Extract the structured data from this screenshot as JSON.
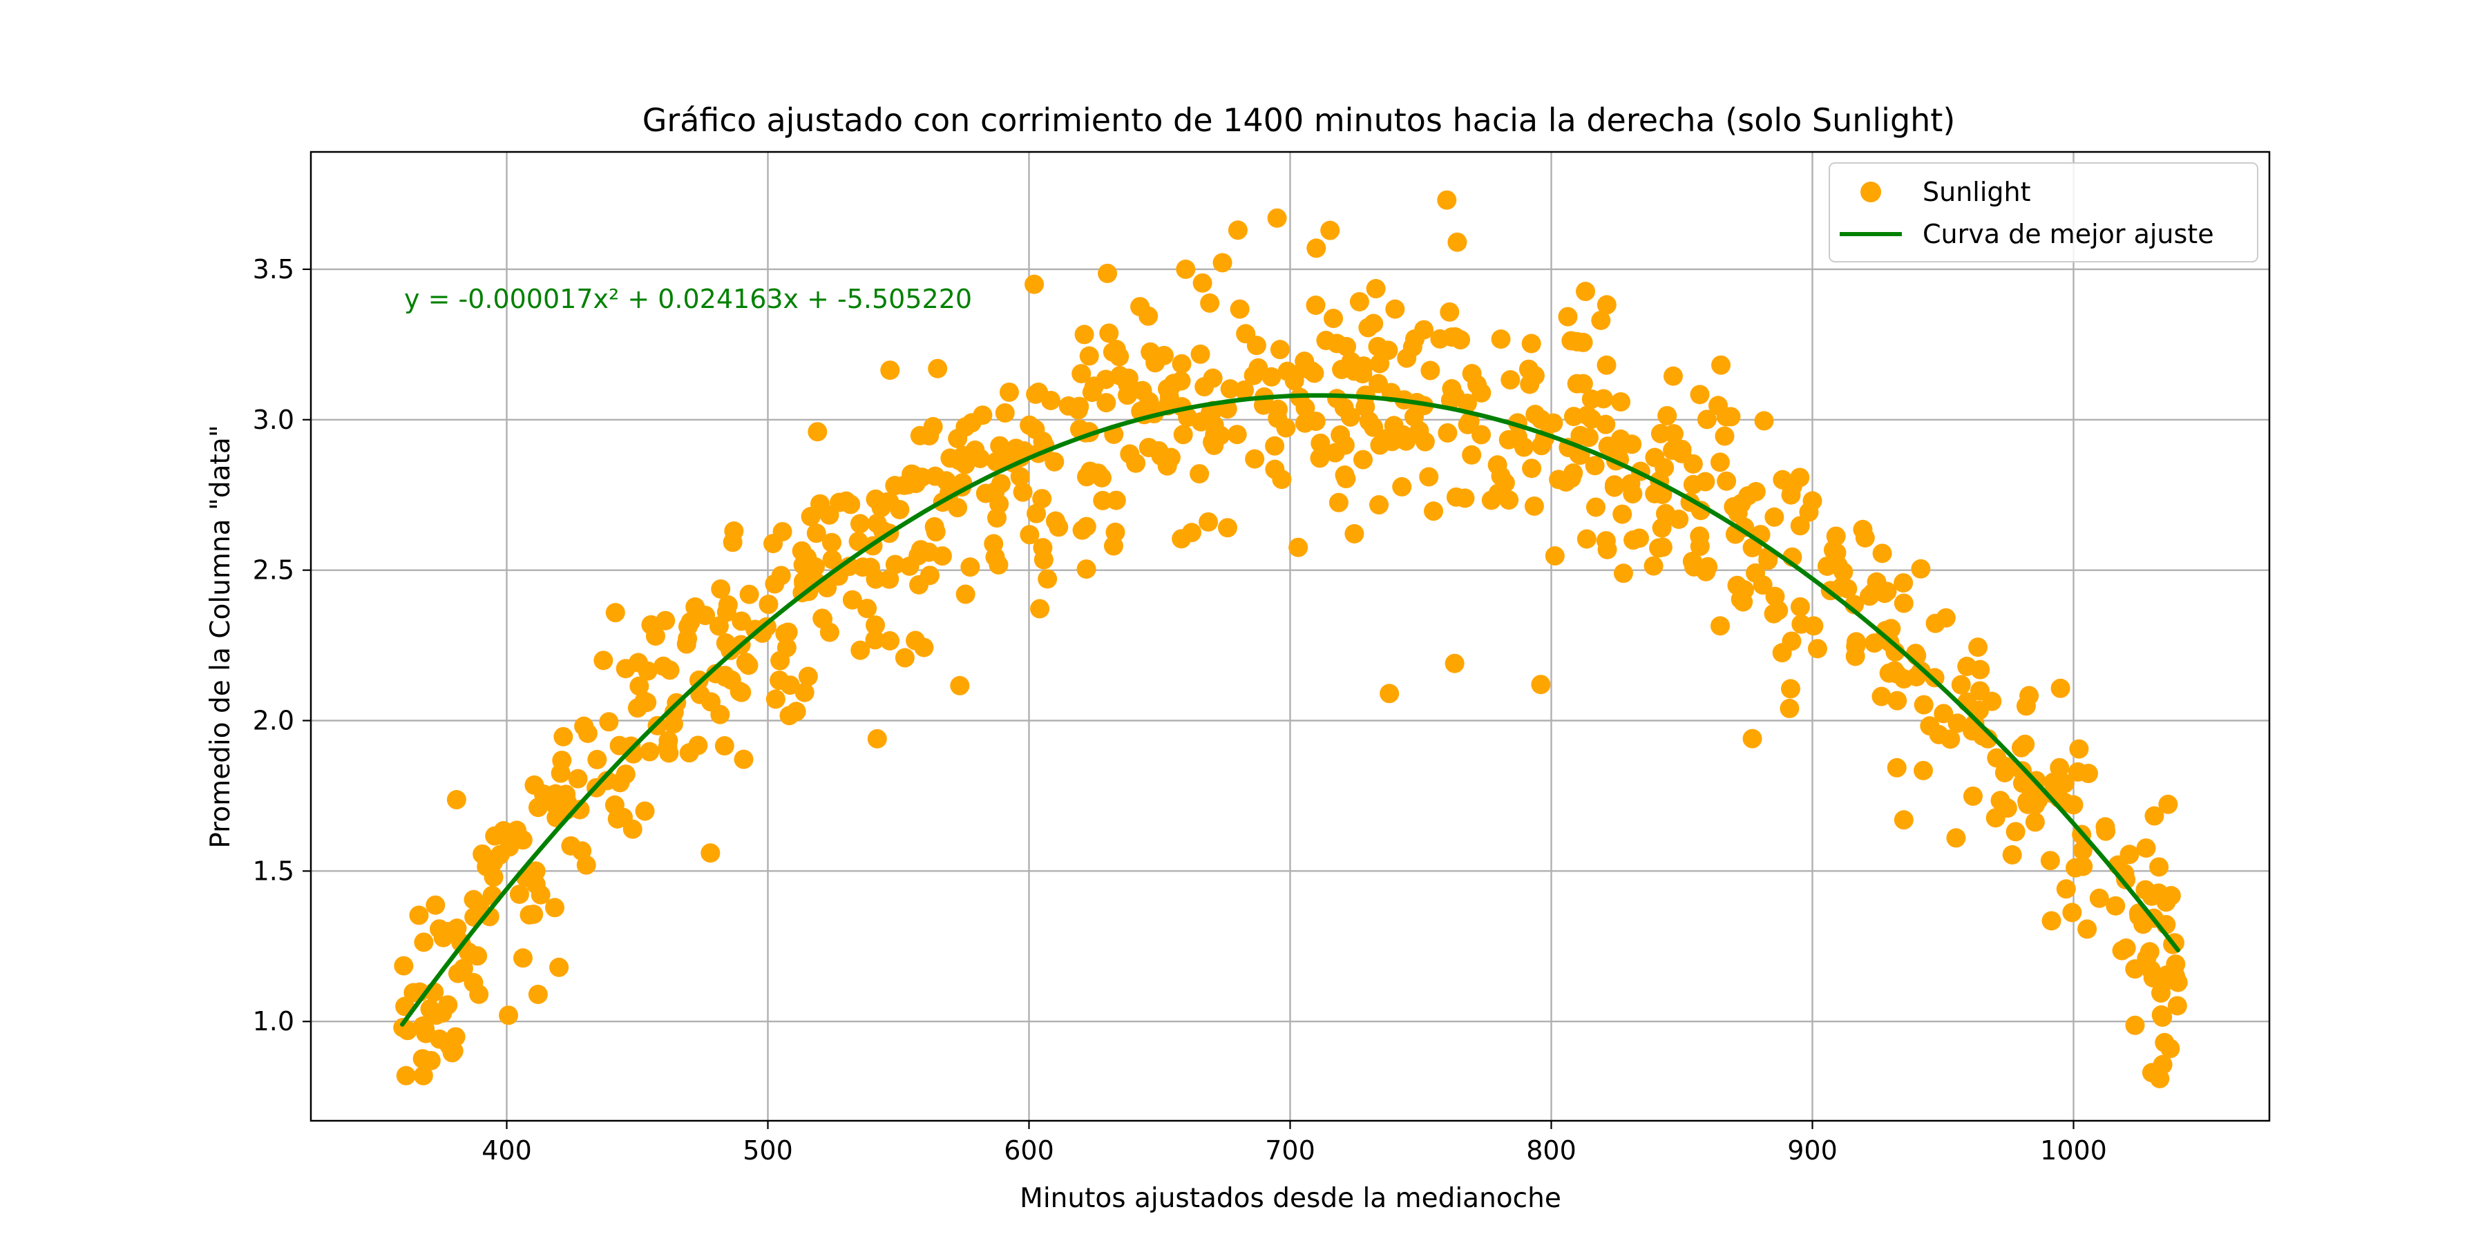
{
  "chart_data": {
    "type": "scatter",
    "title": "Gráfico ajustado con corrimiento de 1400 minutos hacia la derecha (solo Sunlight)",
    "xlabel": "Minutos ajustados desde la medianoche",
    "ylabel": "Promedio de la Columna \"data\"",
    "xlim": [
      325,
      1075
    ],
    "ylim": [
      0.67,
      3.89
    ],
    "xticks": [
      400,
      500,
      600,
      700,
      800,
      900,
      1000
    ],
    "yticks": [
      1.0,
      1.5,
      2.0,
      2.5,
      3.0,
      3.5
    ],
    "xtick_labels": [
      "400",
      "500",
      "600",
      "700",
      "800",
      "900",
      "1000"
    ],
    "ytick_labels": [
      "1.0",
      "1.5",
      "2.0",
      "2.5",
      "3.0",
      "3.5"
    ],
    "grid": true,
    "legend_position": "top-right",
    "series": [
      {
        "name": "Sunlight",
        "kind": "scatter",
        "color": "#FFA500",
        "points_note": "about 780 noisy points around the fitted parabola",
        "x_range": [
          360,
          1040
        ],
        "n_points": 780,
        "noise_sd": 0.2,
        "sample_points": [
          [
            361,
            1.05
          ],
          [
            362,
            0.97
          ],
          [
            371,
            0.87
          ],
          [
            378,
            0.92
          ],
          [
            395,
            1.48
          ],
          [
            401,
            1.58
          ],
          [
            412,
            1.09
          ],
          [
            420,
            1.18
          ],
          [
            437,
            2.2
          ],
          [
            478,
            1.56
          ],
          [
            487,
            2.63
          ],
          [
            519,
            2.96
          ],
          [
            565,
            3.17
          ],
          [
            602,
            3.45
          ],
          [
            660,
            3.5
          ],
          [
            680,
            3.63
          ],
          [
            695,
            3.67
          ],
          [
            710,
            3.57
          ],
          [
            738,
            2.09
          ],
          [
            760,
            3.73
          ],
          [
            764,
            3.59
          ],
          [
            763,
            2.19
          ],
          [
            796,
            2.12
          ],
          [
            819,
            3.33
          ],
          [
            867,
            3.01
          ],
          [
            877,
            1.94
          ],
          [
            900,
            2.73
          ],
          [
            935,
            2.39
          ],
          [
            935,
            1.67
          ],
          [
            955,
            1.61
          ],
          [
            980,
            1.91
          ],
          [
            1000,
            1.72
          ],
          [
            1030,
            0.83
          ],
          [
            1033,
            0.81
          ],
          [
            1037,
            0.91
          ],
          [
            1040,
            1.13
          ]
        ]
      },
      {
        "name": "Curva de mejor ajuste",
        "kind": "line",
        "color": "#008000",
        "equation": {
          "a": -1.7e-05,
          "b": 0.024163,
          "c": -5.50522
        },
        "x_range": [
          360,
          1040
        ],
        "sample_values": [
          [
            360,
            0.95
          ],
          [
            500,
            2.33
          ],
          [
            600,
            2.87
          ],
          [
            700,
            2.95
          ],
          [
            800,
            2.83
          ],
          [
            900,
            2.27
          ],
          [
            1040,
            0.96
          ]
        ]
      }
    ],
    "annotations": [
      {
        "text": "y = -0.000017x² + 0.024163x + -5.505220",
        "color": "#008000",
        "anchor": [
          360,
          3.37
        ]
      }
    ]
  }
}
